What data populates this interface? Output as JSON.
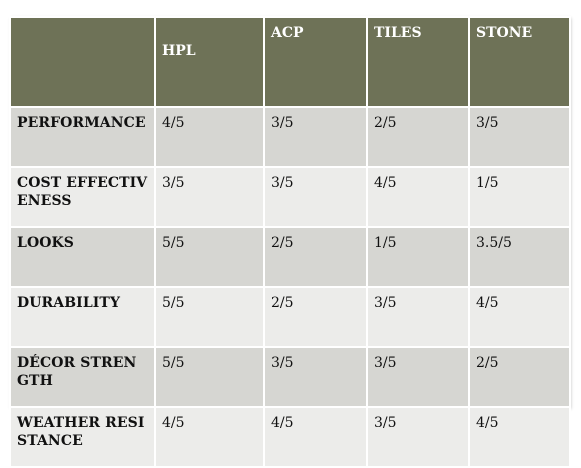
{
  "table": {
    "headers": [
      "",
      "HPL",
      "ACP",
      "TILES",
      "STONE"
    ],
    "rows": [
      {
        "label": "PERFORMANCE",
        "values": [
          "4/5",
          "3/5",
          "2/5",
          "3/5"
        ]
      },
      {
        "label": "COST EFFECTIVENESS",
        "values": [
          "3/5",
          "3/5",
          "4/5",
          "1/5"
        ]
      },
      {
        "label": "LOOKS",
        "values": [
          "5/5",
          "2/5",
          "1/5",
          "3.5/5"
        ]
      },
      {
        "label": "DURABILITY",
        "values": [
          "5/5",
          "2/5",
          "3/5",
          "4/5"
        ]
      },
      {
        "label": "DÉCOR STRENGTH",
        "values": [
          "5/5",
          "3/5",
          "3/5",
          "2/5"
        ]
      },
      {
        "label": "WEATHER RESISTANCE",
        "values": [
          "4/5",
          "4/5",
          "3/5",
          "4/5"
        ]
      }
    ]
  },
  "colors": {
    "header_bg": "#6e7257",
    "row_odd_bg": "#d6d6d2",
    "row_even_bg": "#ececea"
  }
}
